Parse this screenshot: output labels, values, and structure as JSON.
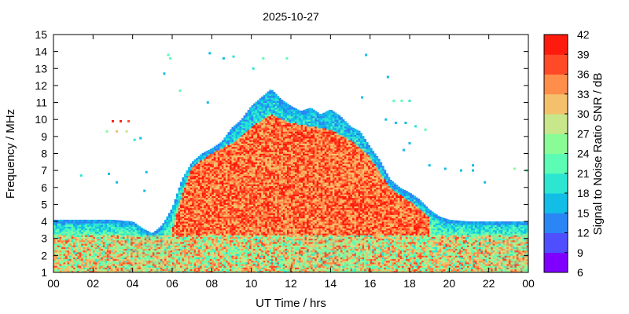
{
  "chart_data": {
    "type": "heatmap",
    "title": "2025-10-27",
    "xlabel": "UT Time / hrs",
    "ylabel": "Frequency / MHz",
    "colorbar_label": "Signal to Noise Ratio SNR / dB",
    "x_range": [
      0,
      24
    ],
    "y_range": [
      1,
      15
    ],
    "x_ticks": [
      "00",
      "02",
      "04",
      "06",
      "08",
      "10",
      "12",
      "14",
      "16",
      "18",
      "20",
      "22",
      "00"
    ],
    "y_ticks": [
      "1",
      "2",
      "3",
      "4",
      "5",
      "6",
      "7",
      "8",
      "9",
      "10",
      "11",
      "12",
      "13",
      "14",
      "15"
    ],
    "colorbar": {
      "range": [
        6,
        42
      ],
      "ticks": [
        "6",
        "9",
        "12",
        "15",
        "18",
        "21",
        "24",
        "27",
        "30",
        "33",
        "36",
        "39",
        "42"
      ],
      "colors": [
        "#7f00ff",
        "#4f4fff",
        "#2a86f5",
        "#12bde6",
        "#2ce6d2",
        "#5cfcb4",
        "#8afc96",
        "#c8e68a",
        "#f4c06c",
        "#ff8e4a",
        "#ff4a28",
        "#ff1a0e"
      ]
    },
    "grid": false,
    "upper_frequency_envelope_mhz": {
      "x": [
        0,
        1,
        2,
        3,
        4,
        4.5,
        5,
        5.5,
        6,
        6.5,
        7,
        7.5,
        8,
        8.5,
        9,
        9.5,
        10,
        10.5,
        11,
        11.5,
        12,
        12.5,
        13,
        13.5,
        14,
        14.5,
        15,
        15.5,
        16,
        16.5,
        17,
        17.5,
        18,
        18.5,
        19,
        19.5,
        20,
        21,
        22,
        23,
        24
      ],
      "y": [
        4.1,
        4.1,
        4.1,
        4.1,
        4.0,
        3.6,
        3.3,
        3.8,
        4.8,
        6.5,
        7.5,
        8.0,
        8.3,
        8.7,
        9.5,
        10.0,
        10.8,
        11.3,
        11.8,
        11.2,
        10.8,
        10.5,
        10.7,
        10.3,
        10.6,
        10.2,
        9.6,
        9.3,
        8.4,
        7.6,
        6.5,
        6.0,
        5.7,
        5.3,
        4.7,
        4.3,
        4.1,
        4.0,
        4.0,
        4.0,
        4.0
      ]
    },
    "strong_core_mhz": {
      "x": [
        6,
        6.5,
        7,
        8,
        9,
        10,
        11,
        12,
        13,
        14,
        15,
        16,
        17,
        18,
        19
      ],
      "y": [
        3.5,
        5.5,
        7.2,
        8.0,
        8.6,
        9.6,
        10.3,
        9.8,
        9.6,
        9.4,
        8.8,
        7.8,
        6.0,
        5.2,
        4.3
      ]
    },
    "sparse_points": [
      {
        "x": 3.0,
        "y": 9.9,
        "snr": 39
      },
      {
        "x": 3.4,
        "y": 9.9,
        "snr": 39
      },
      {
        "x": 3.8,
        "y": 9.9,
        "snr": 36
      },
      {
        "x": 2.7,
        "y": 9.3,
        "snr": 24
      },
      {
        "x": 3.2,
        "y": 9.3,
        "snr": 30
      },
      {
        "x": 3.7,
        "y": 9.3,
        "snr": 27
      },
      {
        "x": 4.1,
        "y": 8.8,
        "snr": 18
      },
      {
        "x": 4.4,
        "y": 8.9,
        "snr": 15
      },
      {
        "x": 5.8,
        "y": 13.8,
        "snr": 21
      },
      {
        "x": 5.9,
        "y": 13.6,
        "snr": 21
      },
      {
        "x": 5.6,
        "y": 12.7,
        "snr": 15
      },
      {
        "x": 7.9,
        "y": 13.9,
        "snr": 15
      },
      {
        "x": 8.6,
        "y": 13.6,
        "snr": 15
      },
      {
        "x": 9.1,
        "y": 13.7,
        "snr": 18
      },
      {
        "x": 10.1,
        "y": 13.0,
        "snr": 18
      },
      {
        "x": 10.6,
        "y": 13.6,
        "snr": 21
      },
      {
        "x": 11.8,
        "y": 13.6,
        "snr": 21
      },
      {
        "x": 15.8,
        "y": 13.8,
        "snr": 15
      },
      {
        "x": 16.9,
        "y": 12.5,
        "snr": 15
      },
      {
        "x": 15.6,
        "y": 11.3,
        "snr": 15
      },
      {
        "x": 17.2,
        "y": 11.1,
        "snr": 21
      },
      {
        "x": 17.6,
        "y": 11.1,
        "snr": 21
      },
      {
        "x": 18.0,
        "y": 11.1,
        "snr": 18
      },
      {
        "x": 16.8,
        "y": 10.0,
        "snr": 15
      },
      {
        "x": 17.3,
        "y": 9.8,
        "snr": 15
      },
      {
        "x": 17.8,
        "y": 9.8,
        "snr": 15
      },
      {
        "x": 18.3,
        "y": 9.6,
        "snr": 18
      },
      {
        "x": 18.8,
        "y": 9.4,
        "snr": 21
      },
      {
        "x": 18.0,
        "y": 8.6,
        "snr": 15
      },
      {
        "x": 17.7,
        "y": 8.2,
        "snr": 15
      },
      {
        "x": 19.0,
        "y": 7.3,
        "snr": 15
      },
      {
        "x": 19.8,
        "y": 7.1,
        "snr": 15
      },
      {
        "x": 20.6,
        "y": 7.0,
        "snr": 15
      },
      {
        "x": 21.2,
        "y": 7.0,
        "snr": 15
      },
      {
        "x": 21.2,
        "y": 7.3,
        "snr": 15
      },
      {
        "x": 21.8,
        "y": 6.3,
        "snr": 15
      },
      {
        "x": 23.3,
        "y": 7.1,
        "snr": 24
      },
      {
        "x": 23.9,
        "y": 7.0,
        "snr": 21
      },
      {
        "x": 1.4,
        "y": 6.7,
        "snr": 18
      },
      {
        "x": 2.8,
        "y": 6.8,
        "snr": 15
      },
      {
        "x": 3.2,
        "y": 6.3,
        "snr": 15
      },
      {
        "x": 4.7,
        "y": 6.9,
        "snr": 15
      },
      {
        "x": 4.6,
        "y": 5.8,
        "snr": 15
      },
      {
        "x": 6.4,
        "y": 11.7,
        "snr": 21
      },
      {
        "x": 7.8,
        "y": 11.0,
        "snr": 15
      }
    ]
  }
}
